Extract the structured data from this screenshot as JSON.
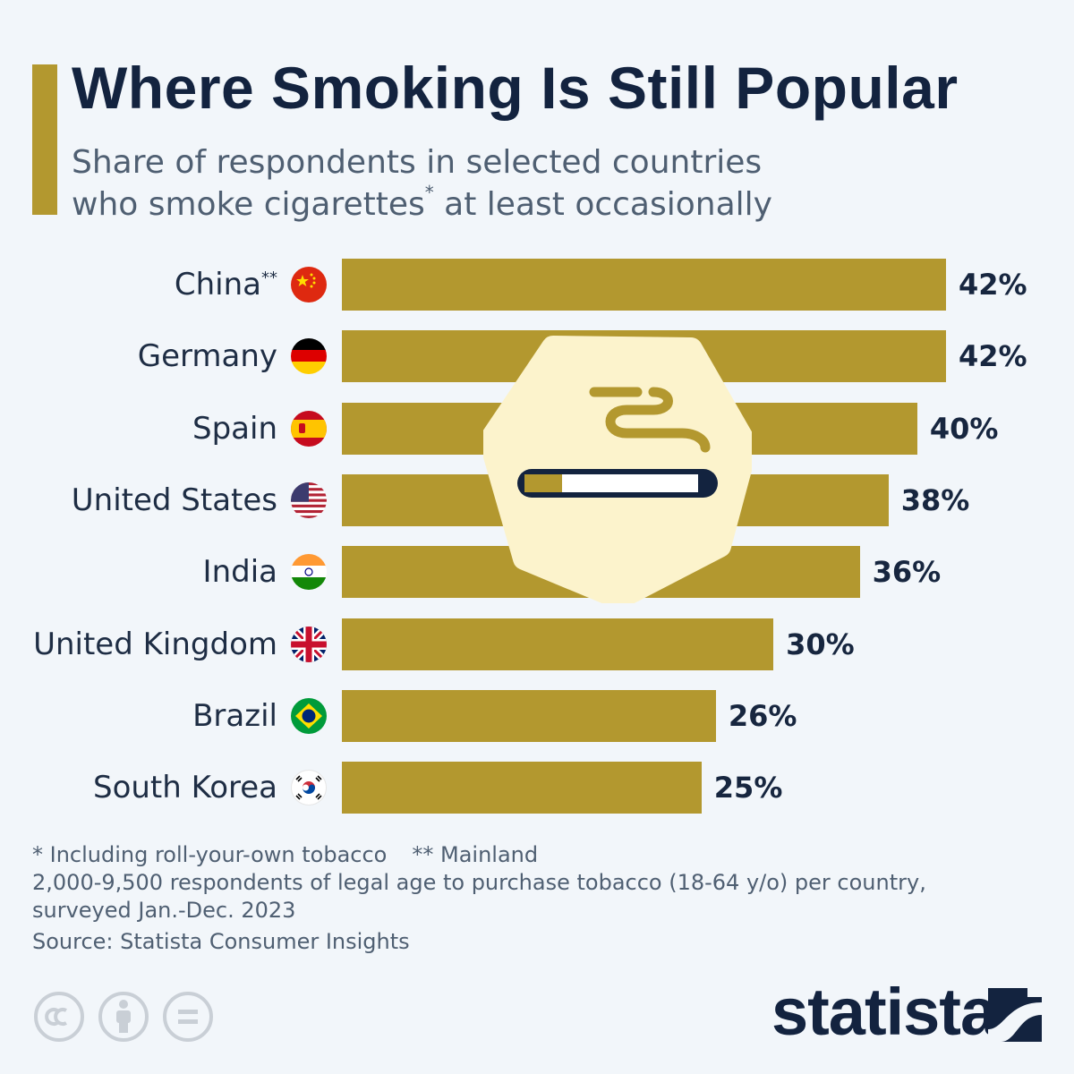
{
  "title": "Where Smoking Is Still Popular",
  "subtitle_line1": "Share of respondents in selected countries",
  "subtitle_line2_a": "who smoke cigarettes",
  "subtitle_line2_sup": "*",
  "subtitle_line2_b": " at least occasionally",
  "colors": {
    "bar": "#b3982f",
    "title": "#13233f",
    "badge_bg": "#fcf3cc"
  },
  "icons": {
    "badge": "cigarette-smoke-icon",
    "license": [
      "cc-icon",
      "attribution-icon",
      "no-derivatives-icon"
    ],
    "brand": "statista-logo-icon"
  },
  "chart_data": {
    "type": "bar",
    "orientation": "horizontal",
    "unit": "%",
    "xlim": [
      0,
      42
    ],
    "categories": [
      "China",
      "Germany",
      "Spain",
      "United States",
      "India",
      "United Kingdom",
      "Brazil",
      "South Korea"
    ],
    "category_marks": [
      "**",
      "",
      "",
      "",
      "",
      "",
      "",
      ""
    ],
    "flags": [
      "china-flag-icon",
      "germany-flag-icon",
      "spain-flag-icon",
      "usa-flag-icon",
      "india-flag-icon",
      "uk-flag-icon",
      "brazil-flag-icon",
      "south-korea-flag-icon"
    ],
    "values": [
      42,
      42,
      40,
      38,
      36,
      30,
      26,
      25
    ],
    "value_labels": [
      "42%",
      "42%",
      "40%",
      "38%",
      "36%",
      "30%",
      "26%",
      "25%"
    ]
  },
  "notes": {
    "note1": "* Including roll-your-own tobacco",
    "note2": "** Mainland",
    "line2": "2,000-9,500 respondents of legal age to purchase tobacco (18-64 y/o) per country,",
    "line3": "surveyed Jan.-Dec. 2023"
  },
  "source": "Source: Statista Consumer Insights",
  "brand": "statista"
}
